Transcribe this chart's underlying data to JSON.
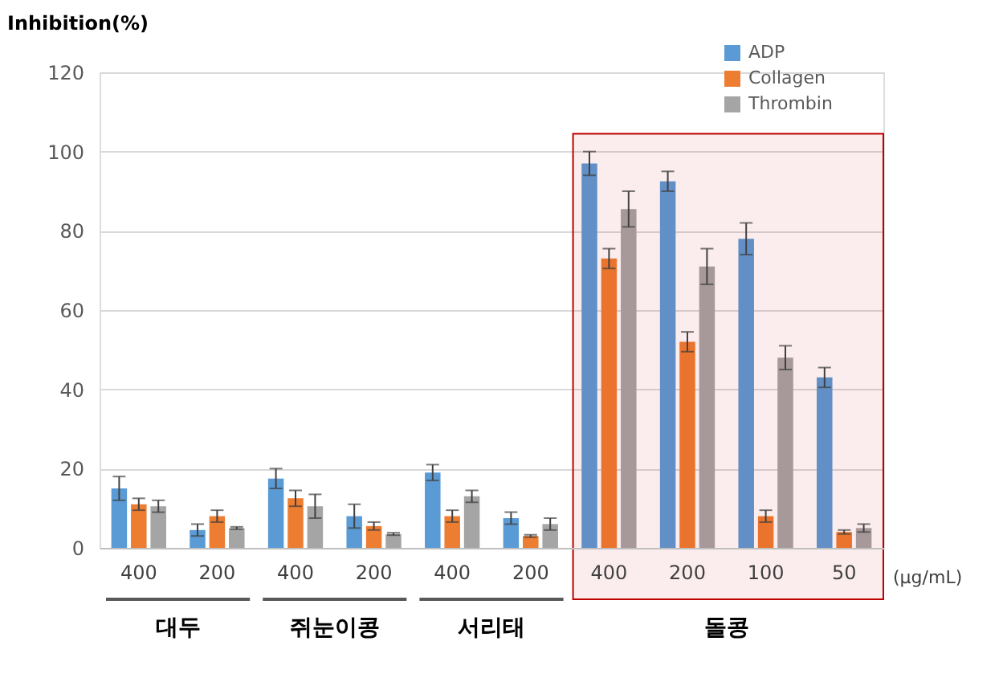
{
  "chart_data": {
    "type": "bar",
    "ylabel": "Inhibition(%)",
    "categories": [
      "400",
      "200",
      "400",
      "200",
      "400",
      "200",
      "400",
      "200",
      "100",
      "50"
    ],
    "series": [
      {
        "name": "ADP",
        "color": "#5b9bd5",
        "values": [
          15,
          4.5,
          17.5,
          8,
          19,
          7.5,
          97,
          92.5,
          78,
          43
        ],
        "errors": [
          3,
          1.5,
          2.5,
          3,
          2,
          1.5,
          3,
          2.5,
          4,
          2.5
        ]
      },
      {
        "name": "Collagen",
        "color": "#ed7d31",
        "values": [
          11,
          8,
          12.5,
          5.5,
          8,
          3,
          73,
          52,
          8,
          4
        ],
        "errors": [
          1.5,
          1.5,
          2,
          1,
          1.5,
          0.3,
          2.5,
          2.5,
          1.5,
          0.5
        ]
      },
      {
        "name": "Thrombin",
        "color": "#a5a5a5",
        "values": [
          10.5,
          5,
          10.5,
          3.5,
          13,
          6,
          85.5,
          71,
          48,
          5
        ],
        "errors": [
          1.5,
          0.3,
          3,
          0.3,
          1.5,
          1.5,
          4.5,
          4.5,
          3,
          1
        ]
      }
    ],
    "ylim": [
      0,
      120
    ],
    "yticks": [
      0,
      20,
      40,
      60,
      80,
      100,
      120
    ],
    "grid": "y",
    "legend": "top right",
    "annotations": [
      "대두",
      "쥐눈이콩",
      "서리태",
      "돌콩",
      "(μg/mL)"
    ]
  }
}
